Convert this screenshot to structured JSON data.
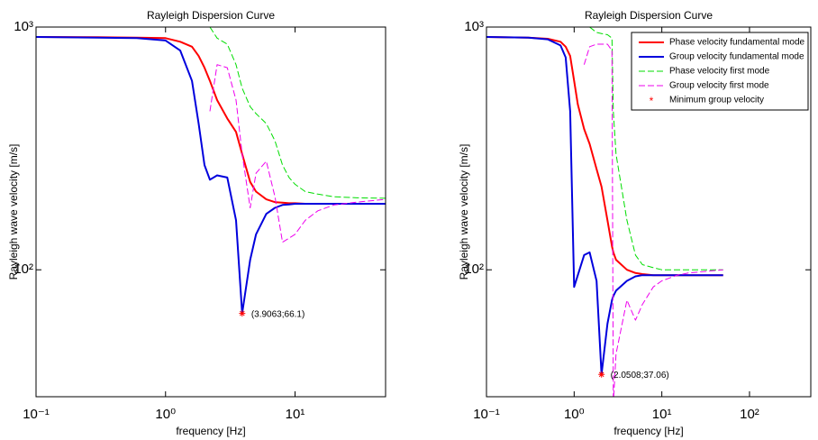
{
  "chart_data": [
    {
      "type": "line",
      "title": "Rayleigh Dispersion Curve",
      "x_label": "frequency [Hz]",
      "y_label": "Rayleigh wave velocity [m/s]",
      "xscale": "log",
      "yscale": "log",
      "grid": false,
      "legend": false,
      "xlim": [
        0.1,
        50
      ],
      "ylim": [
        30,
        1000
      ],
      "xticks": [
        {
          "value": 0.1,
          "label": "10⁻¹"
        },
        {
          "value": 1,
          "label": "10⁰"
        },
        {
          "value": 10,
          "label": "10¹"
        }
      ],
      "yticks": [
        {
          "value": 100,
          "label": "10²"
        },
        {
          "value": 1000,
          "label": "10³"
        }
      ],
      "x": [
        0.1,
        0.3,
        0.6,
        1,
        1.3,
        1.6,
        1.8,
        2,
        2.2,
        2.5,
        3,
        3.5,
        3.9063,
        4.5,
        5,
        6,
        7,
        8,
        9,
        10,
        12,
        15,
        20,
        30,
        50
      ],
      "series": [
        {
          "color": "#ff0000",
          "linestyle": "-",
          "values": [
            910,
            908,
            905,
            900,
            870,
            830,
            760,
            680,
            600,
            500,
            420,
            370,
            300,
            230,
            210,
            195,
            190,
            189,
            188,
            188,
            187,
            187,
            187,
            187,
            187
          ]
        },
        {
          "color": "#0000dd",
          "linestyle": "-",
          "values": [
            910,
            905,
            900,
            880,
            800,
            600,
            400,
            270,
            235,
            245,
            240,
            160,
            66.1,
            110,
            140,
            170,
            180,
            185,
            186,
            187,
            187,
            187,
            187,
            187,
            187
          ]
        },
        {
          "color": "#00dd00",
          "linestyle": "--",
          "values": [
            null,
            null,
            null,
            null,
            null,
            null,
            null,
            null,
            1000,
            900,
            850,
            700,
            560,
            470,
            440,
            400,
            340,
            270,
            240,
            225,
            210,
            205,
            200,
            198,
            197
          ]
        },
        {
          "color": "#ee00ee",
          "linestyle": "--",
          "values": [
            null,
            null,
            null,
            null,
            null,
            null,
            null,
            null,
            450,
            700,
            680,
            500,
            300,
            180,
            250,
            280,
            200,
            130,
            135,
            140,
            160,
            175,
            185,
            190,
            195
          ]
        },
        {
          "color": "#ff0000",
          "linestyle": "marker",
          "values": [
            null,
            null,
            null,
            null,
            null,
            null,
            null,
            null,
            null,
            null,
            null,
            null,
            66.1,
            null,
            null,
            null,
            null,
            null,
            null,
            null,
            null,
            null,
            null,
            null,
            null
          ]
        }
      ],
      "annotation": "(3.9063;66.1)"
    },
    {
      "type": "line",
      "title": "Rayleigh Dispersion Curve",
      "x_label": "frequency [Hz]",
      "y_label": "Rayleigh wave velocity [m/s]",
      "xscale": "log",
      "yscale": "log",
      "grid": false,
      "legend": "upper right",
      "xlim": [
        0.1,
        500
      ],
      "ylim": [
        30,
        1000
      ],
      "xticks": [
        {
          "value": 0.1,
          "label": "10⁻¹"
        },
        {
          "value": 1,
          "label": "10⁰"
        },
        {
          "value": 10,
          "label": "10¹"
        },
        {
          "value": 100,
          "label": "10²"
        }
      ],
      "yticks": [
        {
          "value": 100,
          "label": "10²"
        },
        {
          "value": 1000,
          "label": "10³"
        }
      ],
      "x": [
        0.1,
        0.3,
        0.5,
        0.7,
        0.8,
        0.9,
        1,
        1.1,
        1.3,
        1.5,
        1.8,
        2.0508,
        2.4,
        2.7,
        2.8,
        3,
        4,
        5,
        6,
        8,
        10,
        15,
        20,
        50
      ],
      "series": [
        {
          "name": "Phase velocity fundamental mode",
          "color": "#ff0000",
          "linestyle": "-",
          "values": [
            910,
            905,
            895,
            870,
            830,
            760,
            600,
            480,
            380,
            330,
            260,
            220,
            160,
            125,
            118,
            110,
            100,
            97,
            96,
            95,
            95,
            95,
            95,
            95
          ]
        },
        {
          "name": "Group velocity fundamental mode",
          "color": "#0000dd",
          "linestyle": "-",
          "values": [
            910,
            905,
            890,
            840,
            750,
            450,
            85,
            95,
            115,
            118,
            90,
            37.06,
            60,
            75,
            78,
            82,
            90,
            94,
            95,
            95,
            95,
            95,
            95,
            95
          ]
        },
        {
          "name": "Phase velocity first mode",
          "color": "#00dd00",
          "linestyle": "--",
          "values": [
            null,
            null,
            null,
            null,
            null,
            null,
            null,
            null,
            null,
            1000,
            950,
            940,
            930,
            900,
            450,
            300,
            160,
            115,
            105,
            102,
            100,
            100,
            100,
            100
          ]
        },
        {
          "name": "Group velocity first mode",
          "color": "#ee00ee",
          "linestyle": "--",
          "values": [
            null,
            null,
            null,
            null,
            null,
            null,
            null,
            null,
            700,
            830,
            850,
            850,
            850,
            800,
            28,
            45,
            75,
            62,
            72,
            85,
            90,
            95,
            97,
            100
          ]
        },
        {
          "name": "Minimum group velocity",
          "color": "#ff0000",
          "linestyle": "marker",
          "values": [
            null,
            null,
            null,
            null,
            null,
            null,
            null,
            null,
            null,
            null,
            null,
            37.06,
            null,
            null,
            null,
            null,
            null,
            null,
            null,
            null,
            null,
            null,
            null,
            null
          ]
        }
      ],
      "annotation": "(2.0508;37.06)"
    }
  ]
}
